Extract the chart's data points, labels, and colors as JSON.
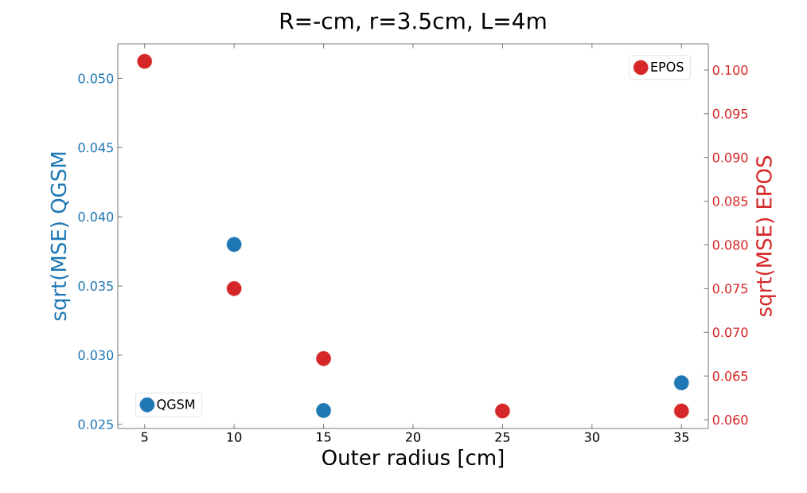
{
  "chart_data": {
    "type": "scatter",
    "title": "R=-cm, r=3.5cm, L=4m",
    "xlabel": "Outer radius [cm]",
    "ylabel": "sqrt(MSE) QGSM",
    "y2label": "sqrt(MSE) EPOS",
    "x": [
      5,
      10,
      15,
      25,
      35
    ],
    "series": [
      {
        "name": "QGSM",
        "color": "#1f77b4",
        "values": [
          null,
          0.038,
          0.026,
          null,
          0.028
        ]
      },
      {
        "name": "EPOS",
        "color": "#d62728",
        "values": [
          0.101,
          0.075,
          0.067,
          0.061,
          0.061
        ],
        "axis": "y2"
      }
    ],
    "marker": "circle",
    "grid": false,
    "legend": "top right",
    "xlim": [
      3.5,
      36.5
    ],
    "xticks": [
      5,
      10,
      15,
      20,
      25,
      30,
      35
    ],
    "ylim": [
      0.0247,
      0.0525
    ],
    "yticks": [
      {
        "value": 0.025,
        "label": "0.025"
      },
      {
        "value": 0.03,
        "label": "0.030"
      },
      {
        "value": 0.035,
        "label": "0.035"
      },
      {
        "value": 0.04,
        "label": "0.040"
      },
      {
        "value": 0.045,
        "label": "0.045"
      },
      {
        "value": 0.05,
        "label": "0.050"
      }
    ],
    "y2lim": [
      0.059,
      0.103
    ],
    "y2ticks": [
      {
        "value": 0.06,
        "label": "0.060"
      },
      {
        "value": 0.065,
        "label": "0.065"
      },
      {
        "value": 0.07,
        "label": "0.070"
      },
      {
        "value": 0.075,
        "label": "0.075"
      },
      {
        "value": 0.08,
        "label": "0.080"
      },
      {
        "value": 0.085,
        "label": "0.085"
      },
      {
        "value": 0.09,
        "label": "0.090"
      },
      {
        "value": 0.095,
        "label": "0.095"
      },
      {
        "value": 0.1,
        "label": "0.100"
      }
    ]
  }
}
